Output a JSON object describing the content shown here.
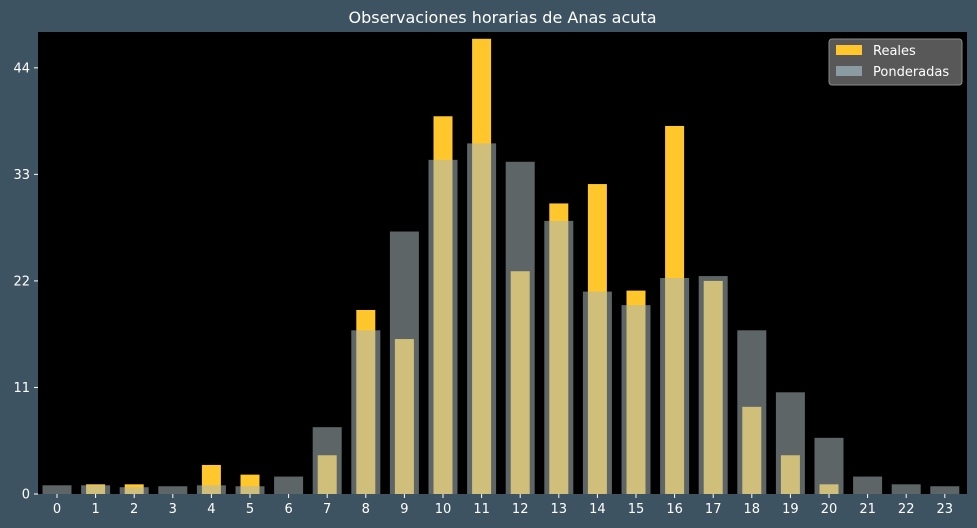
{
  "chart_data": {
    "type": "bar",
    "title": "Observaciones horarias de Anas acuta",
    "xlabel": "",
    "ylabel": "",
    "categories": [
      "0",
      "1",
      "2",
      "3",
      "4",
      "5",
      "6",
      "7",
      "8",
      "9",
      "10",
      "11",
      "12",
      "13",
      "14",
      "15",
      "16",
      "17",
      "18",
      "19",
      "20",
      "21",
      "22",
      "23"
    ],
    "series": [
      {
        "name": "Reales",
        "color": "#ffc72c",
        "values": [
          0,
          1,
          1,
          0,
          3,
          2,
          0,
          4,
          19,
          16,
          39,
          47,
          23,
          30,
          32,
          21,
          38,
          22,
          9,
          4,
          1,
          0,
          0,
          0
        ]
      },
      {
        "name": "Ponderadas",
        "color": "#aab8bc",
        "values": [
          0.9,
          0.9,
          0.7,
          0.8,
          0.9,
          0.8,
          1.8,
          6.9,
          16.9,
          27.1,
          34.5,
          36.2,
          34.3,
          28.2,
          20.9,
          19.5,
          22.3,
          22.5,
          16.9,
          10.5,
          5.8,
          1.8,
          1.0,
          0.8
        ]
      }
    ],
    "yticks": [
      0,
      11,
      22,
      33,
      44
    ],
    "ylim": [
      0,
      47.7
    ],
    "grid": false,
    "legend_position": "top-right"
  }
}
